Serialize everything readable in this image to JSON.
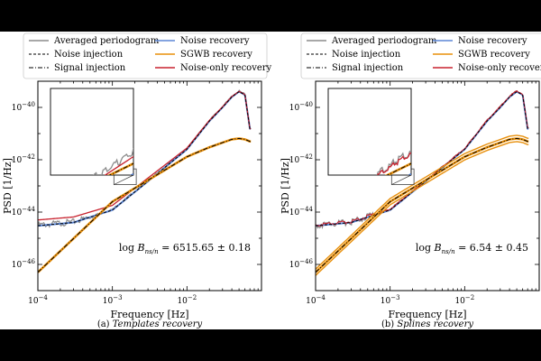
{
  "chart_data": [
    {
      "type": "line",
      "xlabel": "Frequency [Hz]",
      "ylabel": "PSD [1/Hz]",
      "xscale": "log",
      "yscale": "log",
      "xlim": [
        0.0001,
        0.1
      ],
      "ylim": [
        1e-47,
        1e-39
      ],
      "x_ticks": [
        "10^-4",
        "10^-3",
        "10^-2"
      ],
      "y_ticks": [
        "10^-46",
        "10^-44",
        "10^-42",
        "10^-40"
      ],
      "legend": {
        "placement": "top",
        "entries": [
          "Averaged periodogram",
          "Noise recovery",
          "Noise injection",
          "SGWB recovery",
          "Signal injection",
          "Noise-only recovery"
        ]
      },
      "annotation": {
        "prefix": "log ",
        "symbol": "B",
        "subscript": "ns/n",
        "value": "= 6515.65 ± 0.18"
      },
      "caption": {
        "label": "(a)",
        "text": "Templates recovery"
      },
      "inset": true,
      "noise_floor_label_mismatch": "noise-only recovery sits above the injection at low frequency",
      "series": [
        {
          "name": "Noise injection",
          "x": [
            0.0001,
            0.0003,
            0.001,
            0.003,
            0.01,
            0.02,
            0.03,
            0.04,
            0.05,
            0.06,
            0.07
          ],
          "y": [
            3e-45,
            4e-45,
            1.2e-44,
            1.5e-43,
            2.5e-42,
            3e-41,
            1e-40,
            2.5e-40,
            4e-40,
            3e-40,
            1.5e-41
          ]
        },
        {
          "name": "Noise-only recovery",
          "x": [
            0.0001,
            0.0003,
            0.001,
            0.003,
            0.01,
            0.02,
            0.03,
            0.04,
            0.05,
            0.06,
            0.07
          ],
          "y": [
            5e-45,
            6.5e-45,
            1.8e-44,
            2e-43,
            2.8e-42,
            3.2e-41,
            1.05e-40,
            2.6e-40,
            4.1e-40,
            3.1e-40,
            1.5e-41
          ]
        },
        {
          "name": "Signal injection",
          "x": [
            0.0001,
            0.001,
            0.01,
            0.02,
            0.04,
            0.05,
            0.06,
            0.07
          ],
          "y": [
            5e-47,
            2.5e-44,
            1.3e-42,
            3e-42,
            6e-42,
            6.5e-42,
            6e-42,
            5e-42
          ]
        }
      ]
    },
    {
      "type": "line",
      "xlabel": "Frequency [Hz]",
      "ylabel": "PSD [1/Hz]",
      "xscale": "log",
      "yscale": "log",
      "xlim": [
        0.0001,
        0.1
      ],
      "ylim": [
        1e-47,
        1e-39
      ],
      "x_ticks": [
        "10^-4",
        "10^-3",
        "10^-2"
      ],
      "y_ticks": [
        "10^-46",
        "10^-44",
        "10^-42",
        "10^-40"
      ],
      "legend": {
        "placement": "top",
        "entries": [
          "Averaged periodogram",
          "Noise recovery",
          "Noise injection",
          "SGWB recovery",
          "Signal injection",
          "Noise-only recovery"
        ]
      },
      "annotation": {
        "prefix": "log ",
        "symbol": "B",
        "subscript": "ns/n",
        "value": "= 6.54 ± 0.45"
      },
      "caption": {
        "label": "(b)",
        "text": "Splines recovery"
      },
      "inset": true,
      "series": [
        {
          "name": "Noise injection",
          "x": [
            0.0001,
            0.0003,
            0.001,
            0.003,
            0.01,
            0.02,
            0.03,
            0.04,
            0.05,
            0.06,
            0.07
          ],
          "y": [
            3e-45,
            4e-45,
            1.2e-44,
            1.5e-43,
            2.5e-42,
            3e-41,
            1e-40,
            2.5e-40,
            4e-40,
            3e-40,
            1.5e-41
          ]
        },
        {
          "name": "Signal injection",
          "x": [
            0.0001,
            0.001,
            0.01,
            0.02,
            0.04,
            0.05,
            0.06,
            0.07
          ],
          "y": [
            5e-47,
            2.5e-44,
            1.3e-42,
            3e-42,
            6e-42,
            6.5e-42,
            6e-42,
            5e-42
          ]
        }
      ]
    }
  ],
  "colors": {
    "periodogram": "#8c8c8c",
    "noise_recovery": "#5b86d6",
    "sgwb_recovery": "#e8900c",
    "noise_only_recovery": "#c8222e",
    "injection": "#000000"
  }
}
